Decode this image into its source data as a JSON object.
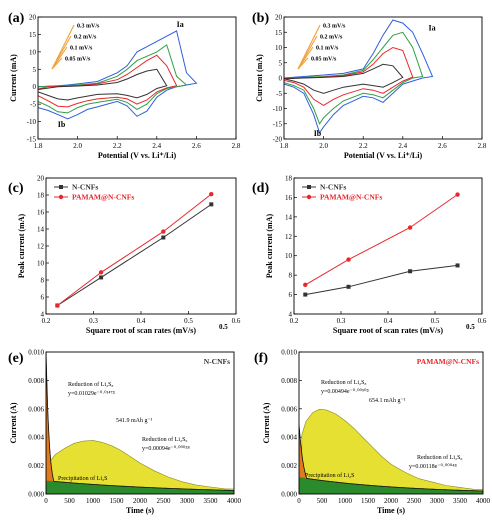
{
  "colors": {
    "black": "#333333",
    "red": "#e8272b",
    "orange": "#f0a33a",
    "green": "#2ea043",
    "blue": "#2f5fe0"
  },
  "chart_data": [
    {
      "panel": "(a)",
      "type": "line",
      "xlabel": "Potential (V vs. Li⁺/Li)",
      "ylabel": "Current (mA)",
      "xlim": [
        1.8,
        2.8
      ],
      "ylim": [
        -15,
        20
      ],
      "xticks": [
        "1.8",
        "2.0",
        "2.2",
        "2.4",
        "2.6",
        "2.8"
      ],
      "yticks": [
        "-15",
        "-10",
        "-5",
        "0",
        "5",
        "10",
        "15",
        "20"
      ],
      "legend": [
        "0.3 mV/s",
        "0.2 mV/s",
        "0.1 mV/s",
        "0.05 mV/s"
      ],
      "peak_labels": [
        "Ia",
        "Ib"
      ],
      "series": [
        {
          "color": "blue",
          "x": [
            1.72,
            1.8,
            1.85,
            1.9,
            1.95,
            2.0,
            2.05,
            2.1,
            2.15,
            2.2,
            2.25,
            2.3,
            2.35,
            2.4,
            2.45,
            2.5,
            2.53,
            2.55,
            2.6,
            2.55,
            2.5,
            2.4,
            2.3,
            2.25,
            2.2,
            2.1,
            2.0,
            1.95,
            1.9,
            1.8,
            1.72
          ],
          "y": [
            -5,
            -6,
            -6.8,
            -8,
            -9.2,
            -8,
            -6.5,
            -5.8,
            -5,
            -4.2,
            -5.5,
            -8.5,
            -7,
            -3,
            -1,
            0,
            0.3,
            0.5,
            1,
            4,
            16,
            13,
            10,
            6,
            4,
            1.5,
            0.8,
            0.5,
            0.3,
            0,
            -2
          ]
        },
        {
          "color": "green",
          "x": [
            1.75,
            1.8,
            1.85,
            1.9,
            1.95,
            2.0,
            2.05,
            2.1,
            2.2,
            2.25,
            2.3,
            2.35,
            2.4,
            2.45,
            2.5,
            2.55,
            2.5,
            2.45,
            2.4,
            2.3,
            2.25,
            2.2,
            2.1,
            2.0,
            1.9,
            1.8,
            1.75
          ],
          "y": [
            -3,
            -4.2,
            -5.5,
            -7.2,
            -7.5,
            -6,
            -5,
            -4.5,
            -3.6,
            -4.5,
            -6.5,
            -5,
            -2,
            -0.5,
            0,
            0.5,
            3,
            12,
            10,
            7.5,
            5,
            3,
            1,
            0.5,
            0.2,
            0,
            -1.5
          ]
        },
        {
          "color": "red",
          "x": [
            1.78,
            1.85,
            1.9,
            1.95,
            2.0,
            2.05,
            2.1,
            2.2,
            2.25,
            2.3,
            2.35,
            2.4,
            2.45,
            2.5,
            2.45,
            2.4,
            2.35,
            2.3,
            2.25,
            2.2,
            2.1,
            2.0,
            1.9,
            1.85,
            1.78
          ],
          "y": [
            -2,
            -4,
            -5.6,
            -5.8,
            -4.8,
            -4,
            -3.5,
            -3,
            -3.5,
            -5,
            -3.8,
            -1.5,
            -0.3,
            0.3,
            6,
            9,
            7.5,
            5.5,
            3.5,
            2,
            0.8,
            0.3,
            0.1,
            0,
            -1
          ]
        },
        {
          "color": "black",
          "x": [
            1.8,
            1.85,
            1.9,
            1.95,
            2.0,
            2.1,
            2.2,
            2.25,
            2.3,
            2.35,
            2.4,
            2.45,
            2.4,
            2.35,
            2.3,
            2.25,
            2.2,
            2.1,
            2.0,
            1.9,
            1.8
          ],
          "y": [
            -1.5,
            -2.5,
            -3.5,
            -3.8,
            -3.2,
            -2.2,
            -2,
            -2.5,
            -3.2,
            -2.2,
            -0.5,
            0.3,
            5,
            4.5,
            3.5,
            2.2,
            1.2,
            0.5,
            0.2,
            0,
            -0.8
          ]
        }
      ]
    },
    {
      "panel": "(b)",
      "type": "line",
      "xlabel": "Potential (V vs. Li⁺/Li)",
      "ylabel": "Current (mA)",
      "xlim": [
        1.8,
        2.8
      ],
      "ylim": [
        -20,
        20
      ],
      "xticks": [
        "1.8",
        "2.0",
        "2.2",
        "2.4",
        "2.6",
        "2.8"
      ],
      "yticks": [
        "-20",
        "-15",
        "-10",
        "-5",
        "0",
        "5",
        "10",
        "15",
        "20"
      ],
      "legend": [
        "0.3 mV/s",
        "0.2 mV/s",
        "0.1 mV/s",
        "0.05 mV/s"
      ],
      "peak_labels": [
        "Ia",
        "Ib"
      ],
      "series": [
        {
          "color": "blue",
          "x": [
            1.72,
            1.8,
            1.85,
            1.9,
            1.95,
            1.98,
            2.0,
            2.05,
            2.1,
            2.15,
            2.2,
            2.25,
            2.3,
            2.35,
            2.4,
            2.5,
            2.55,
            2.5,
            2.45,
            2.4,
            2.35,
            2.3,
            2.25,
            2.2,
            2.1,
            2.0,
            1.9,
            1.8,
            1.72
          ],
          "y": [
            -1,
            -2,
            -3,
            -5,
            -12,
            -18,
            -16,
            -12,
            -9,
            -7.5,
            -6,
            -6.5,
            -8,
            -5,
            -2,
            0,
            0.5,
            8,
            15,
            18,
            19,
            14,
            8,
            3,
            1.5,
            1,
            0.5,
            0,
            -1
          ]
        },
        {
          "color": "green",
          "x": [
            1.75,
            1.8,
            1.85,
            1.9,
            1.95,
            1.98,
            2.0,
            2.05,
            2.1,
            2.2,
            2.25,
            2.3,
            2.35,
            2.4,
            2.45,
            2.5,
            2.45,
            2.4,
            2.35,
            2.3,
            2.25,
            2.2,
            2.1,
            2.0,
            1.9,
            1.8,
            1.75
          ],
          "y": [
            -1,
            -1.5,
            -2.5,
            -4,
            -10,
            -15,
            -13,
            -10,
            -7.5,
            -5,
            -5.5,
            -6.5,
            -4,
            -1.5,
            0,
            0.5,
            10,
            15,
            14,
            10,
            6,
            2.5,
            1,
            0.5,
            0.2,
            0,
            -0.8
          ]
        },
        {
          "color": "red",
          "x": [
            1.78,
            1.85,
            1.9,
            1.95,
            2.0,
            2.05,
            2.1,
            2.2,
            2.25,
            2.3,
            2.35,
            2.4,
            2.45,
            2.4,
            2.35,
            2.3,
            2.25,
            2.2,
            2.1,
            2.0,
            1.9,
            1.8,
            1.78
          ],
          "y": [
            -0.5,
            -1.5,
            -3,
            -7,
            -9,
            -7,
            -5.5,
            -3.5,
            -4,
            -5,
            -3,
            -1,
            0.3,
            9,
            10,
            8,
            4.5,
            2,
            0.8,
            0.3,
            0.1,
            0,
            -0.5
          ]
        },
        {
          "color": "black",
          "x": [
            1.8,
            1.85,
            1.9,
            1.95,
            2.0,
            2.05,
            2.1,
            2.2,
            2.25,
            2.3,
            2.35,
            2.4,
            2.35,
            2.3,
            2.25,
            2.2,
            2.1,
            2.0,
            1.9,
            1.8
          ],
          "y": [
            -0.3,
            -1,
            -2,
            -4,
            -5,
            -4,
            -3,
            -2,
            -2.5,
            -3,
            -1.5,
            0.2,
            4,
            4.5,
            3,
            1.5,
            0.5,
            0.2,
            0,
            -0.3
          ]
        }
      ]
    },
    {
      "panel": "(c)",
      "type": "line",
      "xlabel": "Square root of scan rates (mV/s)",
      "xlabel_sup": "0.5",
      "ylabel": "Peak current (mA)",
      "xlim": [
        0.2,
        0.6
      ],
      "ylim": [
        4,
        20
      ],
      "xticks": [
        "0.2",
        "0.3",
        "0.4",
        "0.5",
        "0.6"
      ],
      "yticks": [
        "4",
        "6",
        "8",
        "10",
        "12",
        "14",
        "16",
        "18",
        "20"
      ],
      "legend_pos": "top-left",
      "series": [
        {
          "name": "N-CNFs",
          "color": "black",
          "marker": "square",
          "x": [
            0.224,
            0.316,
            0.447,
            0.548
          ],
          "y": [
            5.0,
            8.3,
            13.0,
            16.9
          ]
        },
        {
          "name": "PAMAM@N-CNFs",
          "color": "red",
          "marker": "circle",
          "x": [
            0.224,
            0.316,
            0.447,
            0.548
          ],
          "y": [
            5.0,
            8.9,
            13.7,
            18.1
          ]
        }
      ]
    },
    {
      "panel": "(d)",
      "type": "line",
      "xlabel": "Square root of scan rates (mV/s)",
      "xlabel_sup": "0.5",
      "ylabel": "Peak current (mA)",
      "xlim": [
        0.2,
        0.6
      ],
      "ylim": [
        4,
        18
      ],
      "xticks": [
        "0.2",
        "0.3",
        "0.4",
        "0.5",
        "0.6"
      ],
      "yticks": [
        "4",
        "6",
        "8",
        "10",
        "12",
        "14",
        "16",
        "18"
      ],
      "legend_pos": "top-left",
      "series": [
        {
          "name": "N-CNFs",
          "color": "black",
          "marker": "square",
          "x": [
            0.224,
            0.316,
            0.447,
            0.548
          ],
          "y": [
            6.0,
            6.8,
            8.4,
            9.0
          ]
        },
        {
          "name": "PAMAM@N-CNFs",
          "color": "red",
          "marker": "circle",
          "x": [
            0.224,
            0.316,
            0.447,
            0.548
          ],
          "y": [
            7.0,
            9.6,
            12.9,
            16.3
          ]
        }
      ]
    },
    {
      "panel": "(e)",
      "type": "area",
      "title": "N-CNFs",
      "title_color": "black",
      "xlabel": "Time (s)",
      "ylabel": "Current (A)",
      "xlim": [
        0,
        4000
      ],
      "ylim": [
        0,
        0.01
      ],
      "xticks": [
        "0",
        "500",
        "1000",
        "1500",
        "2000",
        "2500",
        "3000",
        "3500",
        "4000"
      ],
      "yticks": [
        "0.000",
        "0.002",
        "0.004",
        "0.006",
        "0.008",
        "0.010"
      ],
      "decay_a": 0.01029,
      "decay_k": 0.01472,
      "base_a": 0.00094,
      "base_k": 0.00033,
      "hump_x": [
        60,
        200,
        400,
        600,
        800,
        1000,
        1200,
        1400,
        1600,
        1800,
        2000,
        2300,
        2600,
        2900,
        3200,
        3500,
        3800,
        4000
      ],
      "hump_y": [
        0.0013,
        0.0019,
        0.0024,
        0.0028,
        0.003,
        0.0031,
        0.003,
        0.0028,
        0.0025,
        0.0021,
        0.0017,
        0.0012,
        0.0008,
        0.0005,
        0.0003,
        0.0002,
        0.0001,
        0.0001
      ],
      "annotations": {
        "reduction_s8": "Reduction of Li₂S₈",
        "eq_s8": "y=0.01029e⁻⁰·⁰¹⁴⁷²ᵗ",
        "capacity": "541.9 mAh g⁻¹",
        "reduction_s6": "Reduction of Li₂S₆",
        "eq_s6": "y=0.00094e⁻⁰·⁰⁰⁰³³ᵗ",
        "precipitation": "Precipitation of Li₂S"
      }
    },
    {
      "panel": "(f)",
      "type": "area",
      "title": "PAMAM@N-CNFs",
      "title_color": "red",
      "xlabel": "Time (s)",
      "ylabel": "Current (A)",
      "xlim": [
        0,
        4000
      ],
      "ylim": [
        0,
        0.01
      ],
      "xticks": [
        "0",
        "500",
        "1000",
        "1500",
        "2000",
        "2500",
        "3000",
        "3500",
        "4000"
      ],
      "yticks": [
        "0.000",
        "0.002",
        "0.004",
        "0.006",
        "0.008",
        "0.010"
      ],
      "decay_a": 0.00494,
      "decay_k": 0.00902,
      "base_a": 0.00118,
      "base_k": 0.00043,
      "hump_x": [
        60,
        150,
        300,
        450,
        600,
        800,
        1000,
        1200,
        1400,
        1600,
        1800,
        2000,
        2300,
        2600,
        2900,
        3200,
        3500,
        3800,
        4000
      ],
      "hump_y": [
        0.003,
        0.004,
        0.0047,
        0.005,
        0.005,
        0.0048,
        0.0044,
        0.0039,
        0.0033,
        0.0027,
        0.0021,
        0.0016,
        0.0011,
        0.0007,
        0.0005,
        0.0003,
        0.0002,
        0.0001,
        0.0001
      ],
      "annotations": {
        "reduction_s8": "Reduction of Li₂S₈",
        "eq_s8": "y=0.00494e⁻⁰·⁰⁰⁹⁰²ᵗ",
        "capacity": "654.1 mAh g⁻¹",
        "reduction_s6": "Reduction of Li₂S₆",
        "eq_s6": "y=0.00118e⁻⁰·⁰⁰⁰⁴³ᵗ",
        "precipitation": "Precipitation of Li₂S"
      }
    }
  ]
}
